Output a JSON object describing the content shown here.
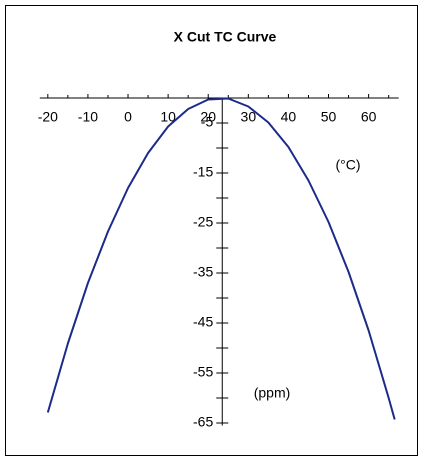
{
  "chart_data": {
    "type": "line",
    "title": "X Cut TC Curve",
    "x": [
      -20,
      -15,
      -10,
      -5,
      0,
      5,
      10,
      15,
      20,
      25,
      30,
      35,
      40,
      45,
      50,
      55,
      60,
      65,
      66.5
    ],
    "series": [
      {
        "color": "#1c2a8a",
        "values": [
          -62.9,
          -49.1,
          -37.0,
          -26.7,
          -18.0,
          -11.0,
          -5.7,
          -2.2,
          -0.3,
          -0.1,
          -1.7,
          -4.9,
          -9.8,
          -16.5,
          -24.8,
          -34.8,
          -46.5,
          -60.0,
          -64.3
        ]
      }
    ],
    "xlim": [
      -22,
      67.5
    ],
    "ylim": [
      -65.5,
      0
    ],
    "xticks": [
      -20,
      -10,
      0,
      10,
      20,
      30,
      40,
      50,
      60
    ],
    "xminorticks": [
      -15,
      -5,
      5,
      15,
      25,
      35,
      45,
      55,
      65
    ],
    "yticks": [
      -5,
      -15,
      -25,
      -35,
      -45,
      -55,
      -65
    ],
    "yminorticks": [
      -10,
      -20,
      -30,
      -40,
      -50,
      -60
    ],
    "y_axis_at_x": 23.5,
    "x_unit_label": "(°C)",
    "y_unit_label": "(ppm)"
  }
}
